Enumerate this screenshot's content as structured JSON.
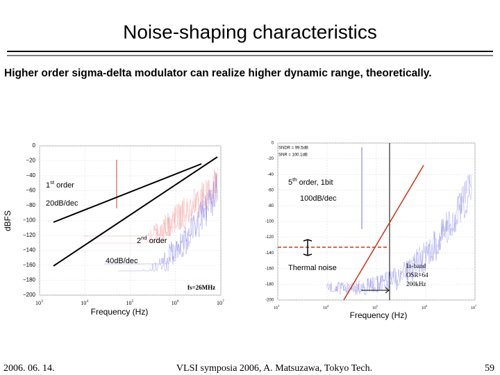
{
  "header": {
    "title": "Noise-shaping characteristics"
  },
  "subtitle": "Higher order sigma-delta modulator can realize higher dynamic range, theoretically.",
  "figures": [
    {
      "yticks": [
        "0",
        "−20",
        "−40",
        "−60",
        "−80",
        "−100",
        "−120",
        "−140",
        "−160",
        "−180",
        "−200"
      ],
      "xticks": [
        {
          "base": "10",
          "exp": "3"
        },
        {
          "base": "10",
          "exp": "4"
        },
        {
          "base": "10",
          "exp": "5"
        },
        {
          "base": "10",
          "exp": "6"
        },
        {
          "base": "10",
          "exp": "7"
        }
      ],
      "xlabel": "Frequency (Hz)",
      "ylabel": "dBFS",
      "annotations": {
        "first_order": {
          "base": "1",
          "sup": "st",
          "rest": " order"
        },
        "slope1": "20dB/dec",
        "second_order": {
          "base": "2",
          "sup": "nd",
          "rest": " order"
        },
        "slope2": "40dB/dec",
        "fs": "fs=26MHz"
      }
    },
    {
      "yticks": [
        "0",
        "-20",
        "-40",
        "-60",
        "-80",
        "-100",
        "-120",
        "-140",
        "-160",
        "-180",
        "-200"
      ],
      "xticks": [
        {
          "base": "10",
          "exp": "3"
        },
        {
          "base": "10",
          "exp": "4"
        },
        {
          "base": "10",
          "exp": "5"
        },
        {
          "base": "10",
          "exp": "6"
        },
        {
          "base": "10",
          "exp": "7"
        }
      ],
      "xlabel": "Frequency (Hz)",
      "annotations": {
        "sndr": "SNDR = 99.5dB",
        "snr": "SNR = 100.1dB",
        "fifth_order": {
          "base": "5",
          "sup": "th",
          "rest": " order, 1bit"
        },
        "slope": "100dB/dec",
        "thermal": "Thermal noise",
        "inband": "In-band",
        "osr": "OSR=64",
        "bw": "200kHz"
      }
    }
  ],
  "footer": {
    "date": "2006. 06. 14.",
    "center": "VLSI symposia 2006,  A. Matsuzawa, Tokyo Tech.",
    "page": "59"
  }
}
